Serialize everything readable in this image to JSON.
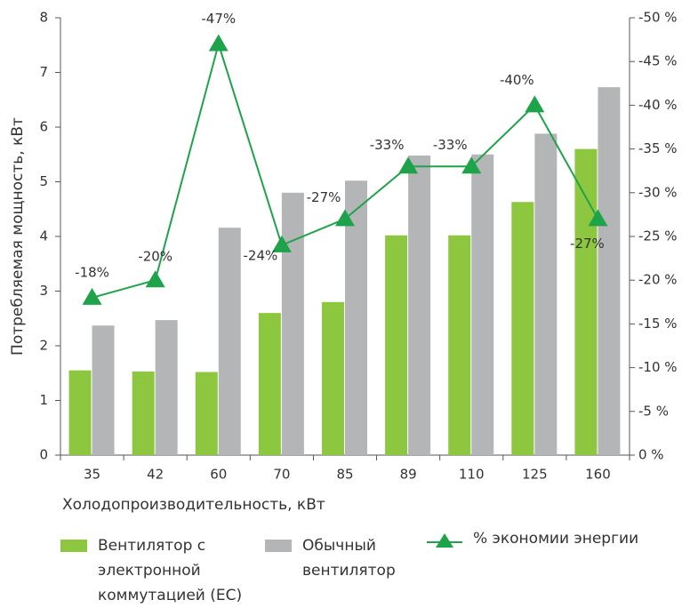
{
  "chart_data": {
    "type": "bar",
    "x_label": "Холодопроизводительность, кВт",
    "y_label": "Потребляемая мощность, кВт",
    "categories": [
      "35",
      "42",
      "60",
      "70",
      "85",
      "89",
      "110",
      "125",
      "160"
    ],
    "series": [
      {
        "name": "Вентилятор с электронной коммутацией (EC)",
        "color": "#8dc63f",
        "type": "bar",
        "values": [
          1.55,
          1.53,
          1.52,
          2.6,
          2.8,
          4.02,
          4.02,
          4.63,
          5.6
        ]
      },
      {
        "name": "Обычный вентилятор",
        "color": "#b4b5b7",
        "type": "bar",
        "values": [
          2.37,
          2.47,
          4.16,
          4.8,
          5.02,
          5.48,
          5.5,
          5.88,
          6.73
        ]
      },
      {
        "name": "% экономии энергии",
        "color": "#1fa34a",
        "type": "line",
        "axis": "y2",
        "values": [
          -18,
          -20,
          -47,
          -24,
          -27,
          -33,
          -33,
          -40,
          -27
        ],
        "value_labels": [
          "-18%",
          "-20%",
          "-47%",
          "-24%",
          "-27%",
          "-33%",
          "-33%",
          "-40%",
          "-27%"
        ]
      }
    ],
    "ylim": [
      0,
      8
    ],
    "yticks": [
      0,
      1,
      2,
      3,
      4,
      5,
      6,
      7,
      8
    ],
    "y2lim": [
      0,
      -50
    ],
    "y2ticks": [
      {
        "value": 0,
        "label": "0 %"
      },
      {
        "value": -5,
        "label": "-5 %"
      },
      {
        "value": -10,
        "label": "-10 %"
      },
      {
        "value": -15,
        "label": "-15 %"
      },
      {
        "value": -20,
        "label": "-20 %"
      },
      {
        "value": -25,
        "label": "-25 %"
      },
      {
        "value": -30,
        "label": "-30 %"
      },
      {
        "value": -35,
        "label": "-35 %"
      },
      {
        "value": -40,
        "label": "-40 %"
      },
      {
        "value": -45,
        "label": "-45 %"
      },
      {
        "value": -50,
        "label": "-50 %"
      }
    ],
    "grid": false
  }
}
